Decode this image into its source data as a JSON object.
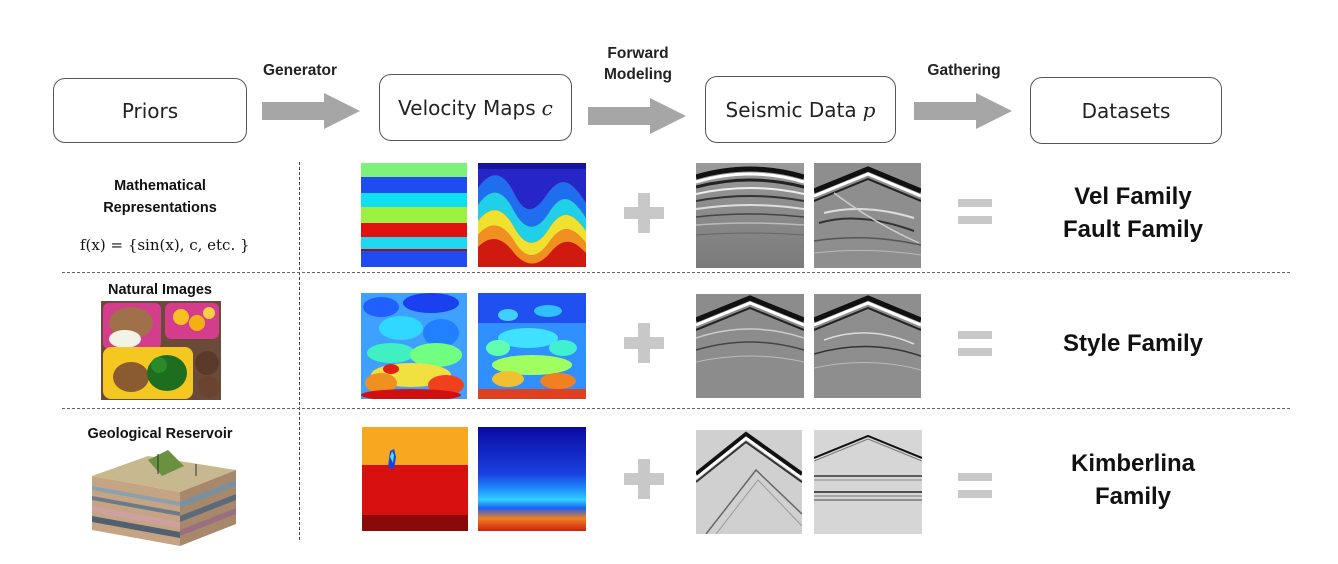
{
  "pipeline": {
    "priors": "Priors",
    "velocity_maps": "Velocity Maps",
    "velocity_symbol": "c",
    "seismic_data": "Seismic Data",
    "seismic_symbol": "p",
    "datasets": "Datasets",
    "arrows": {
      "generator": "Generator",
      "forward_modeling_line1": "Forward",
      "forward_modeling_line2": "Modeling",
      "gathering": "Gathering"
    }
  },
  "rows": [
    {
      "prior_line1": "Mathematical",
      "prior_line2": "Representations",
      "formula": "f(x) = {sin(x), c, etc. }",
      "family_line1": "Vel Family",
      "family_line2": "Fault Family"
    },
    {
      "prior_line1": "Natural Images",
      "family_line1": "Style Family"
    },
    {
      "prior_line1": "Geological Reservoir",
      "family_line1": "Kimberlina",
      "family_line2": "Family"
    }
  ],
  "colors": {
    "arrow": "#a6a6a6",
    "operator": "#c8c8c8",
    "box_border": "#555555"
  },
  "icons": {
    "plus": "plus-icon",
    "equals": "equals-icon"
  }
}
